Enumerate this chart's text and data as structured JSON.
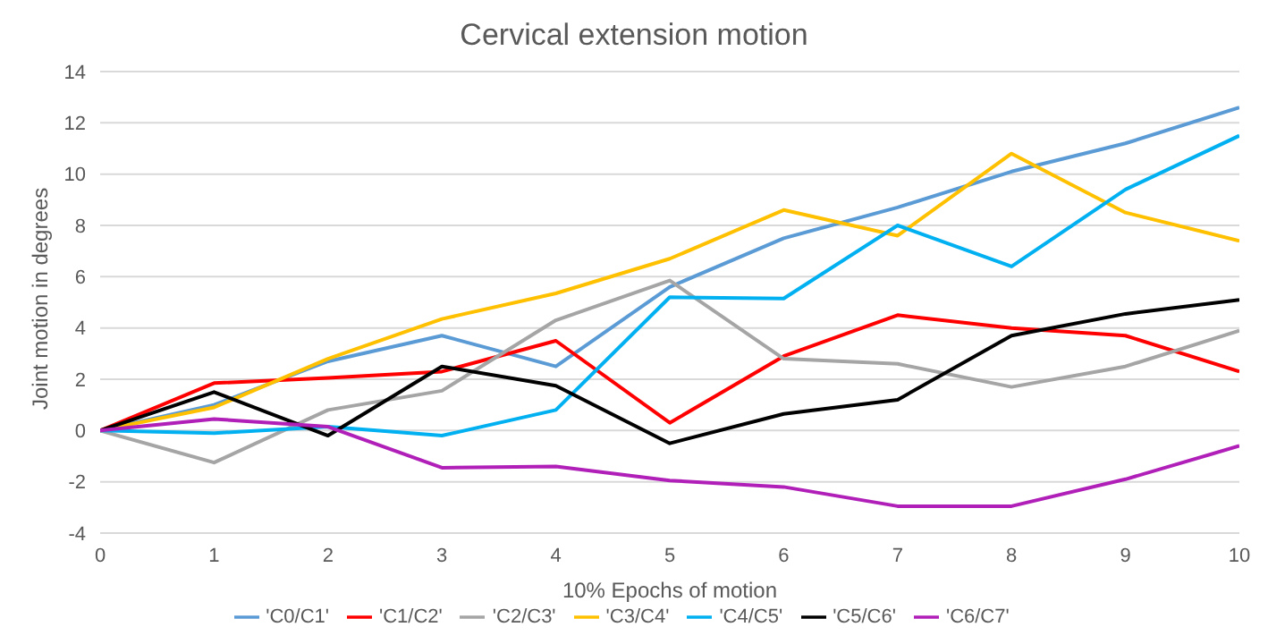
{
  "chart_data": {
    "type": "line",
    "title": "Cervical extension motion",
    "xlabel": "10% Epochs of motion",
    "ylabel": "Joint motion in degrees",
    "x": [
      0,
      1,
      2,
      3,
      4,
      5,
      6,
      7,
      8,
      9,
      10
    ],
    "xlim": [
      0,
      10
    ],
    "xticks": [
      0,
      1,
      2,
      3,
      4,
      5,
      6,
      7,
      8,
      9,
      10
    ],
    "ylim": [
      -4,
      14
    ],
    "yticks": [
      -4,
      -2,
      0,
      2,
      4,
      6,
      8,
      10,
      12,
      14
    ],
    "grid": "y",
    "legend": "bottom",
    "marker": "none",
    "line_style": "solid",
    "series": [
      {
        "name": "'C0/C1'",
        "color": "#5b9bd5",
        "values": [
          0,
          1.0,
          2.7,
          3.7,
          2.5,
          5.6,
          7.5,
          8.7,
          10.1,
          11.2,
          12.6
        ]
      },
      {
        "name": "'C1/C2'",
        "color": "#ff0000",
        "values": [
          0,
          1.85,
          2.05,
          2.3,
          3.5,
          0.3,
          2.9,
          4.5,
          4.0,
          3.7,
          2.3
        ]
      },
      {
        "name": "'C2/C3'",
        "color": "#a5a5a5",
        "values": [
          0,
          -1.25,
          0.8,
          1.55,
          4.3,
          5.85,
          2.8,
          2.6,
          1.7,
          2.5,
          3.9
        ]
      },
      {
        "name": "'C3/C4'",
        "color": "#ffc000",
        "values": [
          0,
          0.9,
          2.8,
          4.35,
          5.35,
          6.7,
          8.6,
          7.6,
          10.8,
          8.5,
          7.4
        ]
      },
      {
        "name": "'C4/C5'",
        "color": "#00b0f0",
        "values": [
          0,
          -0.1,
          0.15,
          -0.2,
          0.8,
          5.2,
          5.15,
          8.0,
          6.4,
          9.4,
          11.5
        ]
      },
      {
        "name": "'C5/C6'",
        "color": "#000000",
        "values": [
          0,
          1.5,
          -0.2,
          2.5,
          1.75,
          -0.5,
          0.65,
          1.2,
          3.7,
          4.55,
          5.1
        ]
      },
      {
        "name": "'C6/C7'",
        "color": "#b020b8",
        "values": [
          0,
          0.45,
          0.15,
          -1.45,
          -1.4,
          -1.95,
          -2.2,
          -2.95,
          -2.95,
          -1.9,
          -0.6
        ]
      }
    ]
  }
}
